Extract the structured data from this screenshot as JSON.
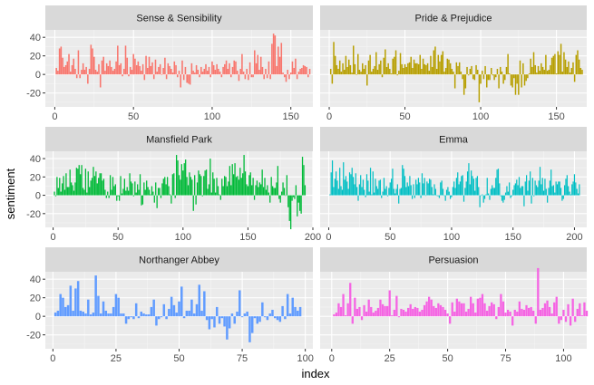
{
  "chart_data": {
    "type": "bar",
    "xlabel": "index",
    "ylabel": "sentiment",
    "facets": [
      {
        "name": "Sense & Sensibility",
        "color": "#F8766D",
        "xlim": [
          -6,
          164
        ],
        "ylim": [
          -35,
          48
        ],
        "xticks": [
          0,
          50,
          100,
          150
        ],
        "yticks": [
          -20,
          0,
          20,
          40
        ],
        "values": [
          7,
          4,
          28,
          30,
          18,
          8,
          10,
          14,
          22,
          3,
          10,
          17,
          6,
          -4,
          26,
          -4,
          5,
          12,
          5,
          8,
          -10,
          6,
          32,
          28,
          19,
          5,
          3,
          11,
          -14,
          15,
          19,
          4,
          12,
          9,
          15,
          8,
          4,
          6,
          14,
          31,
          10,
          12,
          -2,
          6,
          31,
          18,
          -2,
          8,
          5,
          22,
          17,
          10,
          14,
          9,
          4,
          11,
          -6,
          20,
          7,
          19,
          9,
          13,
          -5,
          16,
          3,
          8,
          11,
          0,
          7,
          18,
          -5,
          12,
          9,
          6,
          2,
          14,
          10,
          -3,
          4,
          -14,
          15,
          -6,
          8,
          -9,
          -10,
          -11,
          12,
          4,
          2,
          10,
          5,
          -3,
          8,
          3,
          6,
          11,
          4,
          8,
          -3,
          14,
          10,
          5,
          11,
          6,
          3,
          -3,
          8,
          11,
          15,
          6,
          12,
          -3,
          8,
          15,
          14,
          4,
          -7,
          6,
          22,
          3,
          -5,
          6,
          -6,
          13,
          -3,
          -3,
          26,
          12,
          21,
          5,
          19,
          8,
          -5,
          6,
          -4,
          14,
          -5,
          33,
          44,
          42,
          9,
          30,
          19,
          34,
          2,
          -3,
          -8,
          5,
          -5,
          2,
          14,
          7,
          17,
          -5,
          3,
          6,
          7,
          10,
          9,
          8,
          -3,
          6
        ]
      },
      {
        "name": "Pride & Prejudice",
        "color": "#B79F00",
        "xlim": [
          -6,
          170
        ],
        "ylim": [
          -35,
          48
        ],
        "xticks": [
          0,
          50,
          100,
          150
        ],
        "yticks": [
          -20,
          0,
          20,
          40
        ],
        "values": [
          6,
          -10,
          35,
          20,
          10,
          6,
          15,
          3,
          12,
          5,
          20,
          8,
          16,
          10,
          2,
          31,
          11,
          0,
          22,
          5,
          3,
          12,
          6,
          10,
          -12,
          15,
          21,
          3,
          6,
          9,
          24,
          5,
          11,
          15,
          -3,
          18,
          27,
          8,
          12,
          6,
          1,
          17,
          19,
          26,
          -1,
          4,
          23,
          11,
          7,
          11,
          8,
          12,
          13,
          19,
          7,
          16,
          12,
          12,
          11,
          21,
          6,
          17,
          11,
          10,
          12,
          4,
          20,
          8,
          26,
          30,
          6,
          21,
          14,
          21,
          25,
          3,
          7,
          17,
          16,
          12,
          6,
          3,
          -15,
          13,
          9,
          13,
          3,
          -5,
          -22,
          -15,
          8,
          -1,
          6,
          9,
          -5,
          -6,
          10,
          5,
          -30,
          -10,
          4,
          -5,
          9,
          -14,
          -6,
          -6,
          7,
          -1,
          -6,
          -3,
          6,
          -15,
          8,
          3,
          -10,
          -6,
          8,
          22,
          1,
          -12,
          -14,
          -4,
          -22,
          -10,
          -22,
          15,
          -14,
          12,
          -12,
          -7,
          -4,
          1,
          17,
          8,
          24,
          10,
          2,
          9,
          4,
          12,
          8,
          5,
          21,
          4,
          5,
          10,
          18,
          20,
          22,
          1,
          25,
          21,
          33,
          3,
          24,
          16,
          8,
          14,
          2,
          7,
          13,
          -8,
          21,
          26,
          16,
          7,
          5
        ]
      },
      {
        "name": "Mansfield Park",
        "color": "#00BA38",
        "xlim": [
          -6,
          200
        ],
        "ylim": [
          -35,
          48
        ],
        "xticks": [
          0,
          50,
          100,
          150,
          200
        ],
        "yticks": [
          -20,
          0,
          20,
          40
        ],
        "values": [
          4,
          -1,
          20,
          8,
          19,
          4,
          13,
          21,
          6,
          24,
          9,
          9,
          28,
          14,
          11,
          5,
          14,
          30,
          29,
          33,
          23,
          33,
          8,
          6,
          29,
          3,
          26,
          9,
          16,
          19,
          31,
          21,
          26,
          13,
          19,
          24,
          24,
          16,
          18,
          6,
          -3,
          4,
          -3,
          22,
          6,
          20,
          10,
          12,
          -6,
          -1,
          -6,
          21,
          2,
          7,
          18,
          5,
          9,
          5,
          24,
          15,
          13,
          -1,
          15,
          3,
          12,
          6,
          23,
          -11,
          -10,
          14,
          6,
          16,
          9,
          6,
          1,
          10,
          4,
          -8,
          14,
          -14,
          8,
          8,
          -3,
          13,
          18,
          20,
          12,
          20,
          10,
          1,
          -9,
          23,
          24,
          -3,
          44,
          38,
          22,
          17,
          34,
          27,
          35,
          39,
          20,
          11,
          25,
          20,
          17,
          -17,
          22,
          -10,
          14,
          27,
          23,
          21,
          -1,
          21,
          27,
          28,
          7,
          12,
          40,
          3,
          25,
          18,
          3,
          19,
          10,
          1,
          -5,
          18,
          10,
          21,
          20,
          10,
          15,
          32,
          11,
          34,
          23,
          35,
          20,
          21,
          17,
          30,
          19,
          24,
          44,
          26,
          12,
          10,
          22,
          25,
          11,
          19,
          -5,
          11,
          16,
          9,
          14,
          12,
          28,
          9,
          19,
          6,
          11,
          3,
          -8,
          20,
          10,
          8,
          8,
          14,
          32,
          -4,
          -8,
          4,
          14,
          8,
          0,
          22,
          -13,
          -28,
          -37,
          -6,
          -2,
          -4,
          11,
          -23,
          -8,
          -17,
          -20,
          42,
          33,
          11
        ]
      },
      {
        "name": "Emma",
        "color": "#00BFC4",
        "xlim": [
          -7,
          210
        ],
        "ylim": [
          -35,
          48
        ],
        "xticks": [
          0,
          50,
          100,
          150,
          200
        ],
        "yticks": [
          -20,
          0,
          20,
          40
        ],
        "values": [
          1,
          25,
          38,
          9,
          18,
          26,
          16,
          7,
          30,
          10,
          6,
          36,
          17,
          21,
          15,
          7,
          25,
          23,
          30,
          20,
          12,
          24,
          9,
          -6,
          12,
          22,
          9,
          17,
          6,
          -2,
          23,
          16,
          4,
          30,
          1,
          26,
          3,
          18,
          10,
          7,
          16,
          17,
          -3,
          4,
          19,
          7,
          10,
          -1,
          8,
          14,
          18,
          29,
          7,
          2,
          7,
          12,
          -9,
          7,
          8,
          33,
          29,
          21,
          9,
          14,
          10,
          21,
          11,
          -4,
          12,
          -3,
          17,
          12,
          19,
          14,
          -3,
          24,
          13,
          19,
          0,
          15,
          13,
          18,
          17,
          9,
          1,
          12,
          7,
          0,
          -1,
          -3,
          14,
          16,
          7,
          0,
          -6,
          6,
          9,
          4,
          -4,
          -2,
          9,
          15,
          8,
          19,
          25,
          12,
          15,
          21,
          22,
          -7,
          8,
          15,
          26,
          35,
          12,
          27,
          21,
          18,
          5,
          19,
          21,
          9,
          -13,
          0,
          1,
          -8,
          -4,
          1,
          19,
          2,
          -5,
          7,
          11,
          8,
          8,
          19,
          28,
          29,
          13,
          -1,
          -6,
          -8,
          -5,
          3,
          10,
          4,
          14,
          -3,
          -1,
          6,
          11,
          13,
          17,
          11,
          20,
          8,
          10,
          10,
          -12,
          15,
          22,
          5,
          16,
          26,
          -9,
          19,
          -1,
          16,
          11,
          9,
          16,
          31,
          12,
          19,
          5,
          18,
          7,
          -8,
          8,
          16,
          28,
          10,
          11,
          3,
          15,
          12,
          15,
          15,
          8,
          -6,
          -4,
          11,
          18,
          22,
          10,
          4,
          1,
          12,
          15,
          23,
          14,
          7,
          2,
          12
        ]
      },
      {
        "name": "Northanger Abbey",
        "color": "#619CFF",
        "xlim": [
          -3,
          103
        ],
        "ylim": [
          -35,
          48
        ],
        "xticks": [
          0,
          25,
          50,
          75,
          100
        ],
        "yticks": [
          -20,
          0,
          20,
          40
        ],
        "values": [
          4,
          6,
          24,
          20,
          10,
          12,
          33,
          6,
          30,
          38,
          6,
          5,
          3,
          18,
          2,
          4,
          44,
          22,
          3,
          16,
          6,
          3,
          3,
          10,
          24,
          20,
          3,
          3,
          -8,
          -3,
          -1,
          -3,
          14,
          -2,
          5,
          3,
          2,
          2,
          10,
          18,
          -10,
          -3,
          -1,
          13,
          -3,
          8,
          21,
          12,
          4,
          16,
          32,
          -2,
          6,
          6,
          18,
          3,
          13,
          34,
          6,
          27,
          -4,
          -14,
          -3,
          -12,
          10,
          -8,
          -2,
          -11,
          -25,
          -13,
          3,
          -8,
          5,
          28,
          -1,
          3,
          5,
          -28,
          -18,
          -2,
          -8,
          -6,
          15,
          -1,
          -4,
          3,
          7,
          -2,
          -4,
          -6,
          11,
          -3,
          24,
          3,
          20,
          10,
          6,
          10
        ]
      },
      {
        "name": "Persuasion",
        "color": "#F564E3",
        "xlim": [
          -5,
          110
        ],
        "ylim": [
          -35,
          48
        ],
        "xticks": [
          0,
          25,
          50,
          75,
          100
        ],
        "yticks": [
          -20,
          0,
          20,
          40
        ],
        "values": [
          2,
          4,
          14,
          10,
          24,
          1,
          14,
          36,
          -8,
          20,
          8,
          10,
          -4,
          12,
          5,
          18,
          10,
          4,
          6,
          9,
          18,
          13,
          11,
          11,
          28,
          1,
          7,
          22,
          -1,
          8,
          7,
          5,
          9,
          13,
          8,
          10,
          9,
          5,
          7,
          12,
          16,
          21,
          18,
          11,
          9,
          14,
          12,
          10,
          7,
          3,
          -8,
          15,
          5,
          19,
          16,
          14,
          14,
          5,
          8,
          21,
          14,
          4,
          19,
          20,
          24,
          14,
          6,
          11,
          15,
          13,
          -3,
          10,
          24,
          16,
          4,
          7,
          5,
          -10,
          7,
          5,
          16,
          8,
          7,
          12,
          9,
          10,
          6,
          -8,
          52,
          7,
          9,
          14,
          17,
          10,
          3,
          15,
          21,
          -8,
          -4,
          7,
          -6,
          13,
          -10,
          19,
          -6,
          8,
          14,
          1,
          15,
          6
        ]
      }
    ]
  }
}
